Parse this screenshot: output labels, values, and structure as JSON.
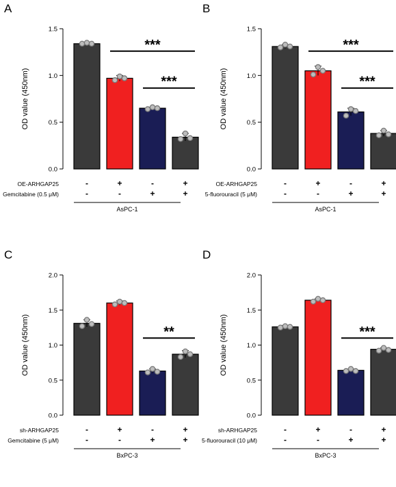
{
  "colors": {
    "dark_gray": "#3a3a3a",
    "red": "#f02020",
    "navy": "#1a1d55",
    "point_fill": "#bdbdbd",
    "point_stroke": "#7a7a7a"
  },
  "panels": [
    {
      "label": "A",
      "ylabel": "OD value (450nm)",
      "ylim": [
        0,
        1.5
      ],
      "yticks": [
        "0.0",
        "0.5",
        "1.0",
        "1.5"
      ],
      "treatment_rows": [
        {
          "label": "OE-ARHGAP25",
          "signs": [
            "-",
            "+",
            "-",
            "+"
          ]
        },
        {
          "label": "Gemcitabine (0.5 μM)",
          "signs": [
            "-",
            "-",
            "+",
            "+"
          ]
        }
      ],
      "group_label": "AsPC-1",
      "significance": [
        {
          "from": 2,
          "to": 4,
          "text": "***"
        },
        {
          "from": 3,
          "to": 4,
          "text": "***"
        }
      ]
    },
    {
      "label": "B",
      "ylabel": "OD value (450nm)",
      "ylim": [
        0,
        1.5
      ],
      "yticks": [
        "0.0",
        "0.5",
        "1.0",
        "1.5"
      ],
      "treatment_rows": [
        {
          "label": "OE-ARHGAP25",
          "signs": [
            "-",
            "+",
            "-",
            "+"
          ]
        },
        {
          "label": "5-fluorouracil (5 μM)",
          "signs": [
            "-",
            "-",
            "+",
            "+"
          ]
        }
      ],
      "group_label": "AsPC-1",
      "significance": [
        {
          "from": 2,
          "to": 4,
          "text": "***"
        },
        {
          "from": 3,
          "to": 4,
          "text": "***"
        }
      ]
    },
    {
      "label": "C",
      "ylabel": "OD value (450nm)",
      "ylim": [
        0,
        2.0
      ],
      "yticks": [
        "0.0",
        "0.5",
        "1.0",
        "1.5",
        "2.0"
      ],
      "treatment_rows": [
        {
          "label": "sh-ARHGAP25",
          "signs": [
            "-",
            "+",
            "-",
            "+"
          ]
        },
        {
          "label": "Gemcitabine (5 μM)",
          "signs": [
            "-",
            "-",
            "+",
            "+"
          ]
        }
      ],
      "group_label": "BxPC-3",
      "significance": [
        {
          "from": 3,
          "to": 4,
          "text": "**"
        }
      ]
    },
    {
      "label": "D",
      "ylabel": "OD value (450nm)",
      "ylim": [
        0,
        2.0
      ],
      "yticks": [
        "0.0",
        "0.5",
        "1.0",
        "1.5",
        "2.0"
      ],
      "treatment_rows": [
        {
          "label": "sh-ARHGAP25",
          "signs": [
            "-",
            "+",
            "-",
            "+"
          ]
        },
        {
          "label": "5-fluorouracil (10 μM)",
          "signs": [
            "-",
            "-",
            "+",
            "+"
          ]
        }
      ],
      "group_label": "BxPC-3",
      "significance": [
        {
          "from": 3,
          "to": 4,
          "text": "***"
        }
      ]
    }
  ],
  "chart_data": [
    {
      "type": "bar",
      "title": "",
      "xlabel": "",
      "ylabel": "OD value (450nm)",
      "ylim": [
        0,
        1.5
      ],
      "categories": [
        "1",
        "2",
        "3",
        "4"
      ],
      "values": [
        1.34,
        0.97,
        0.65,
        0.34
      ],
      "bar_colors": [
        "#3a3a3a",
        "#f02020",
        "#1a1d55",
        "#3a3a3a"
      ],
      "errors": [
        0.01,
        0.03,
        0.01,
        0.04
      ],
      "points": [
        [
          1.34,
          1.35,
          1.34
        ],
        [
          0.95,
          0.99,
          0.97
        ],
        [
          0.64,
          0.66,
          0.65
        ],
        [
          0.32,
          0.38,
          0.33
        ]
      ],
      "grid": false
    },
    {
      "type": "bar",
      "title": "",
      "xlabel": "",
      "ylabel": "OD value (450nm)",
      "ylim": [
        0,
        1.5
      ],
      "categories": [
        "1",
        "2",
        "3",
        "4"
      ],
      "values": [
        1.31,
        1.05,
        0.61,
        0.38
      ],
      "bar_colors": [
        "#3a3a3a",
        "#f02020",
        "#1a1d55",
        "#3a3a3a"
      ],
      "errors": [
        0.02,
        0.05,
        0.04,
        0.03
      ],
      "points": [
        [
          1.3,
          1.33,
          1.31
        ],
        [
          1.01,
          1.09,
          1.05
        ],
        [
          0.57,
          0.64,
          0.62
        ],
        [
          0.36,
          0.41,
          0.37
        ]
      ],
      "grid": false
    },
    {
      "type": "bar",
      "title": "",
      "xlabel": "",
      "ylabel": "OD value (450nm)",
      "ylim": [
        0,
        2.0
      ],
      "categories": [
        "1",
        "2",
        "3",
        "4"
      ],
      "values": [
        1.31,
        1.6,
        0.63,
        0.87
      ],
      "bar_colors": [
        "#3a3a3a",
        "#f02020",
        "#1a1d55",
        "#3a3a3a"
      ],
      "errors": [
        0.05,
        0.03,
        0.03,
        0.05
      ],
      "points": [
        [
          1.27,
          1.36,
          1.3
        ],
        [
          1.58,
          1.62,
          1.6
        ],
        [
          0.61,
          0.66,
          0.62
        ],
        [
          0.83,
          0.91,
          0.87
        ]
      ],
      "grid": false
    },
    {
      "type": "bar",
      "title": "",
      "xlabel": "",
      "ylabel": "OD value (450nm)",
      "ylim": [
        0,
        2.0
      ],
      "categories": [
        "1",
        "2",
        "3",
        "4"
      ],
      "values": [
        1.26,
        1.64,
        0.64,
        0.94
      ],
      "bar_colors": [
        "#3a3a3a",
        "#f02020",
        "#1a1d55",
        "#3a3a3a"
      ],
      "errors": [
        0.02,
        0.02,
        0.02,
        0.02
      ],
      "points": [
        [
          1.25,
          1.27,
          1.26
        ],
        [
          1.62,
          1.66,
          1.64
        ],
        [
          0.63,
          0.66,
          0.63
        ],
        [
          0.92,
          0.96,
          0.93
        ]
      ],
      "grid": false
    }
  ]
}
